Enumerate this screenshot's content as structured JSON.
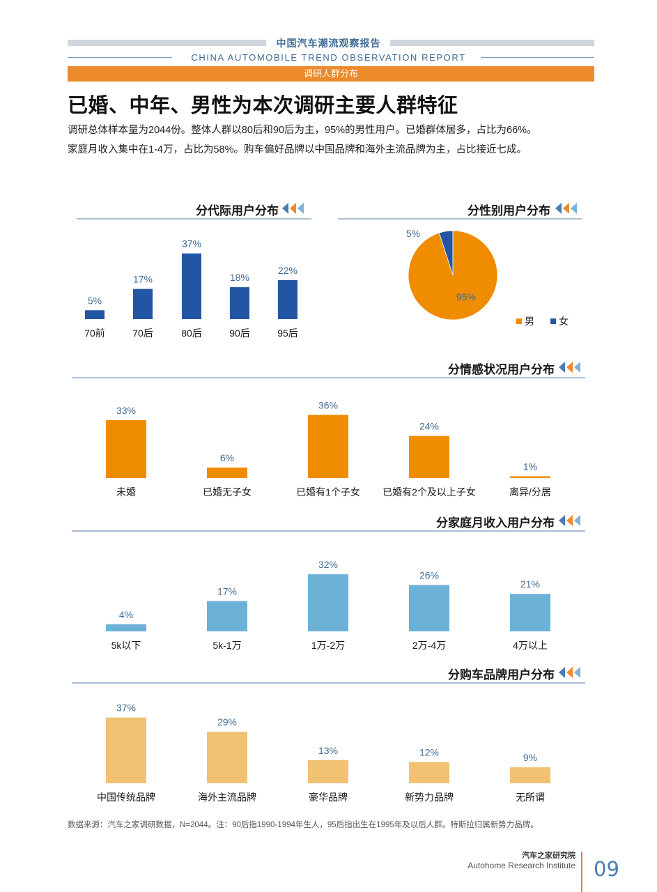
{
  "header": {
    "title_cn": "中国汽车潮流观察报告",
    "title_en": "CHINA AUTOMOBILE TREND OBSERVATION REPORT",
    "section": "调研人群分布"
  },
  "main_title": "已婚、中年、男性为本次调研主要人群特征",
  "intro": [
    "调研总体样本量为2044份。整体人群以80后和90后为主，95%的男性用户。已婚群体居多，占比为66%。",
    "家庭月收入集中在1-4万，占比为58%。购车偏好品牌以中国品牌和海外主流品牌为主，占比接近七成。"
  ],
  "chart_data": [
    {
      "id": "generation",
      "type": "bar",
      "title": "分代际用户分布",
      "categories": [
        "70前",
        "70后",
        "80后",
        "90后",
        "95后"
      ],
      "values": [
        5,
        17,
        37,
        18,
        22
      ],
      "value_labels": [
        "5%",
        "17%",
        "37%",
        "18%",
        "22%"
      ],
      "unit": "%",
      "color": "#2355a3"
    },
    {
      "id": "gender",
      "type": "pie",
      "title": "分性别用户分布",
      "categories": [
        "男",
        "女"
      ],
      "values": [
        95,
        5
      ],
      "value_labels": [
        "95%",
        "5%"
      ],
      "colors": [
        "#f08c00",
        "#2355a3"
      ],
      "legend": "bottom-right"
    },
    {
      "id": "marital",
      "type": "bar",
      "title": "分情感状况用户分布",
      "categories": [
        "未婚",
        "已婚无子女",
        "已婚有1个子女",
        "已婚有2个及以上子女",
        "离异/分居"
      ],
      "values": [
        33,
        6,
        36,
        24,
        1
      ],
      "value_labels": [
        "33%",
        "6%",
        "36%",
        "24%",
        "1%"
      ],
      "unit": "%",
      "color": "#f08c00"
    },
    {
      "id": "income",
      "type": "bar",
      "title": "分家庭月收入用户分布",
      "categories": [
        "5k以下",
        "5k-1万",
        "1万-2万",
        "2万-4万",
        "4万以上"
      ],
      "values": [
        4,
        17,
        32,
        26,
        21
      ],
      "value_labels": [
        "4%",
        "17%",
        "32%",
        "26%",
        "21%"
      ],
      "unit": "%",
      "color": "#6cb2d6"
    },
    {
      "id": "brand",
      "type": "bar",
      "title": "分购车品牌用户分布",
      "categories": [
        "中国传统品牌",
        "海外主流品牌",
        "豪华品牌",
        "新势力品牌",
        "无所谓"
      ],
      "values": [
        37,
        29,
        13,
        12,
        9
      ],
      "value_labels": [
        "37%",
        "29%",
        "13%",
        "12%",
        "9%"
      ],
      "unit": "%",
      "color": "#f0c271"
    }
  ],
  "colors": {
    "accent_orange": "#ec8a2c",
    "label_blue": "#3f6a96",
    "arrow_blue": "#4a7cb0"
  },
  "footnote": "数据来源：汽车之家调研数据，N=2044。注：90后指1990-1994年生人，95后指出生在1995年及以后人群。特斯拉归属新势力品牌。",
  "footer": {
    "institute_cn": "汽车之家研究院",
    "institute_en": "Autohome Research Institute",
    "page_number": "09"
  }
}
